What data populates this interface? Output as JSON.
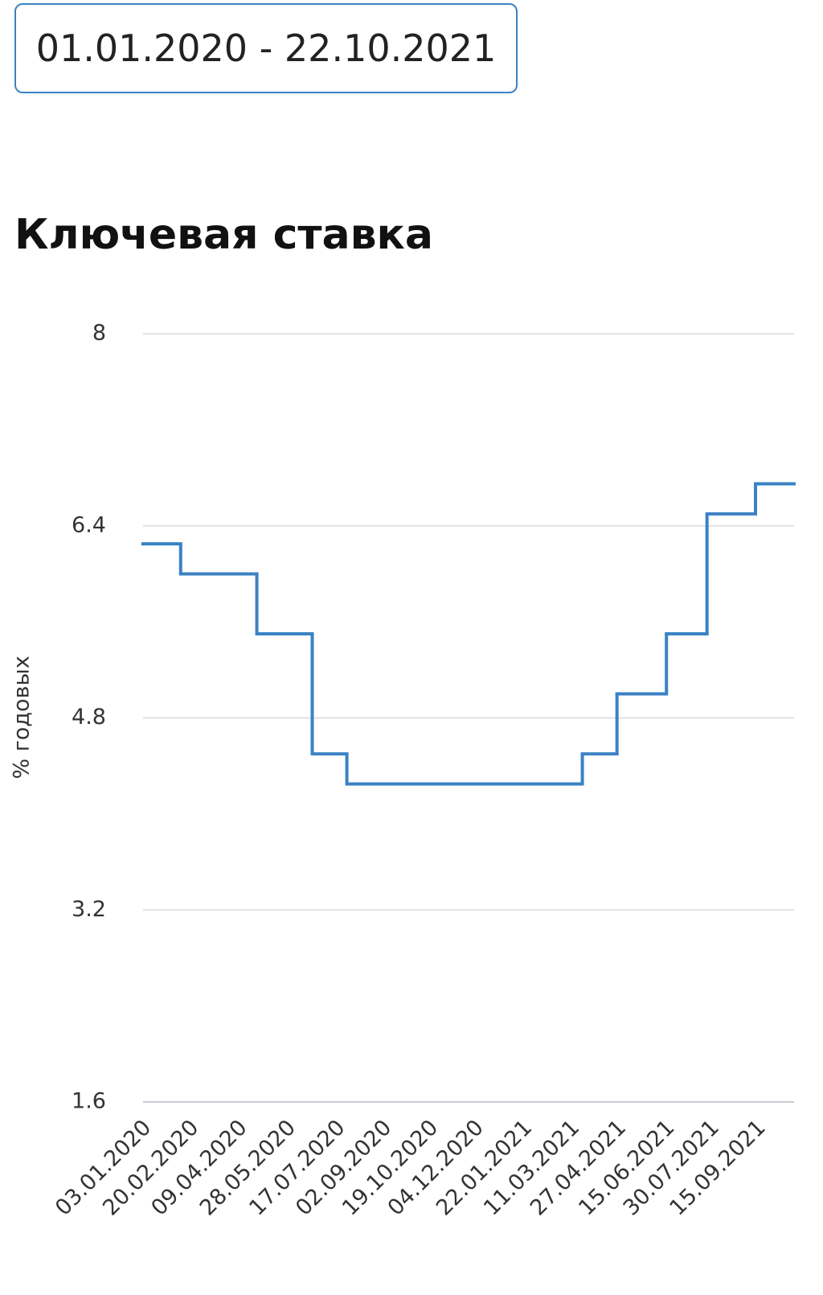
{
  "date_range": "01.01.2020 - 22.10.2021",
  "chart_data": {
    "type": "step",
    "title": "Ключевая ставка",
    "y_label": "% годовых",
    "x": [
      "03.01.2020",
      "10.02.2020",
      "27.04.2020",
      "22.06.2020",
      "27.07.2020",
      "22.03.2021",
      "26.04.2021",
      "15.06.2021",
      "26.07.2021",
      "13.09.2021"
    ],
    "series": [
      {
        "name": "Ключевая ставка",
        "color": "#3a82c4",
        "values": [
          6.25,
          6,
          5.5,
          4.5,
          4.25,
          4.5,
          5,
          5.5,
          6.5,
          6.75
        ]
      }
    ],
    "xlim": [
      "03.01.2020",
      "22.10.2021"
    ],
    "xticks": [
      "03.01.2020",
      "20.02.2020",
      "09.04.2020",
      "28.05.2020",
      "17.07.2020",
      "02.09.2020",
      "19.10.2020",
      "04.12.2020",
      "22.01.2021",
      "11.03.2021",
      "27.04.2021",
      "15.06.2021",
      "30.07.2021",
      "15.09.2021"
    ],
    "ylim": [
      1.6,
      8
    ],
    "yticks": [
      1.6,
      3.2,
      4.8,
      6.4,
      8
    ],
    "grid": true
  }
}
